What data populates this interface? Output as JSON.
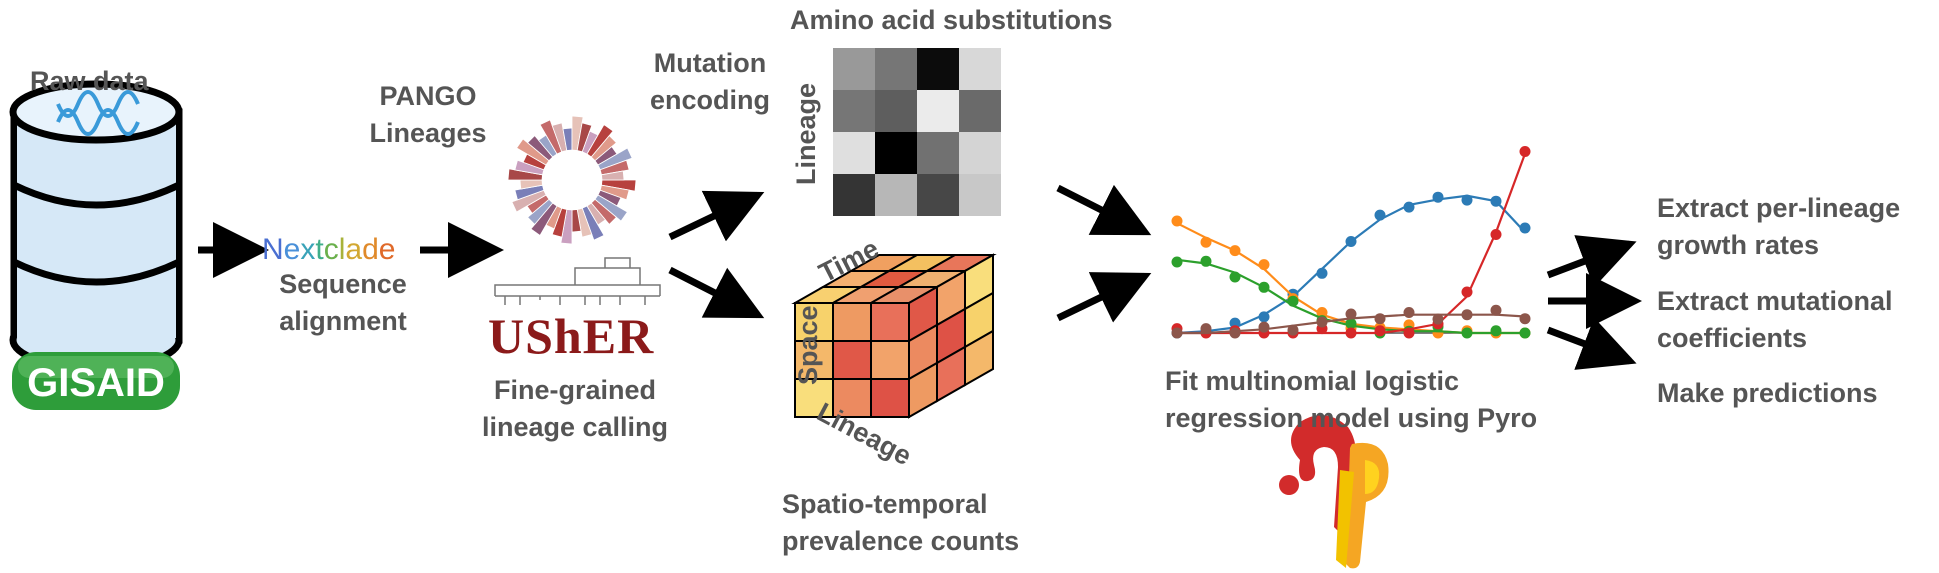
{
  "colors": {
    "text": "#555555",
    "arrow": "#000000",
    "db_fill": "#d6e8f7",
    "gisaid_green": "#2e9d3a",
    "usher_red": "#8b1a1a",
    "series": [
      "#2c7bb6",
      "#ff8c1a",
      "#2ca02c",
      "#d62728",
      "#8c564b"
    ]
  },
  "nodes": {
    "raw_data": {
      "title": "Raw data",
      "logo": "GISAID"
    },
    "nextclade": {
      "logo": "Nextclade",
      "caption": [
        "Sequence",
        "alignment"
      ],
      "logo_colors": [
        "#4a6fd1",
        "#4a90d9",
        "#3aa3b8",
        "#3fae8a",
        "#6ab04c",
        "#a8b23a",
        "#d2a832",
        "#e08a2a",
        "#e06a2a"
      ]
    },
    "pango": {
      "title": [
        "PANGO",
        "Lineages"
      ]
    },
    "usher": {
      "logo": "UShER",
      "caption": [
        "Fine-grained",
        "lineage calling"
      ]
    },
    "mutation": {
      "label": [
        "Mutation",
        "encoding"
      ],
      "heatmap_title": "Amino acid substitutions",
      "heatmap_ylabel": "Lineage"
    },
    "cube": {
      "time_label": "Time",
      "space_label": "Space",
      "lineage_label": "Lineage",
      "caption": [
        "Spatio-temporal",
        "prevalence counts"
      ]
    },
    "model": {
      "caption": [
        "Fit multinomial logistic",
        "regression model using Pyro"
      ]
    },
    "outputs": [
      [
        "Extract per-lineage",
        "growth rates"
      ],
      [
        "Extract mutational",
        "coefficients"
      ],
      [
        "Make predictions"
      ]
    ]
  },
  "heatmap": [
    [
      0.65,
      0.5,
      0.05,
      0.92
    ],
    [
      0.5,
      0.4,
      1.0,
      0.45
    ],
    [
      0.95,
      0.0,
      0.48,
      0.9
    ],
    [
      0.22,
      0.78,
      0.3,
      0.85
    ]
  ],
  "chart_data": {
    "type": "line",
    "title": "",
    "xlabel": "",
    "ylabel": "",
    "x": [
      0,
      1,
      2,
      3,
      4,
      5,
      6,
      7,
      8,
      9,
      10,
      11,
      12
    ],
    "series": [
      {
        "color": "#2c7bb6",
        "values": [
          0.0,
          0.01,
          0.03,
          0.1,
          0.2,
          0.35,
          0.5,
          0.62,
          0.7,
          0.73,
          0.75,
          0.72,
          0.55
        ]
      },
      {
        "color": "#ff8c1a",
        "values": [
          0.6,
          0.52,
          0.45,
          0.35,
          0.2,
          0.1,
          0.05,
          0.03,
          0.02,
          0.01,
          0.0,
          0.0,
          0.0
        ]
      },
      {
        "color": "#2ca02c",
        "values": [
          0.4,
          0.38,
          0.33,
          0.25,
          0.15,
          0.08,
          0.04,
          0.02,
          0.01,
          0.01,
          0.0,
          0.0,
          0.0
        ]
      },
      {
        "color": "#d62728",
        "values": [
          0.0,
          0.0,
          0.0,
          0.0,
          0.0,
          0.0,
          0.0,
          0.0,
          0.02,
          0.05,
          0.2,
          0.55,
          0.98
        ]
      },
      {
        "color": "#8c564b",
        "values": [
          0.0,
          0.0,
          0.01,
          0.02,
          0.04,
          0.06,
          0.08,
          0.09,
          0.1,
          0.1,
          0.1,
          0.1,
          0.09
        ]
      }
    ],
    "grid": false
  }
}
